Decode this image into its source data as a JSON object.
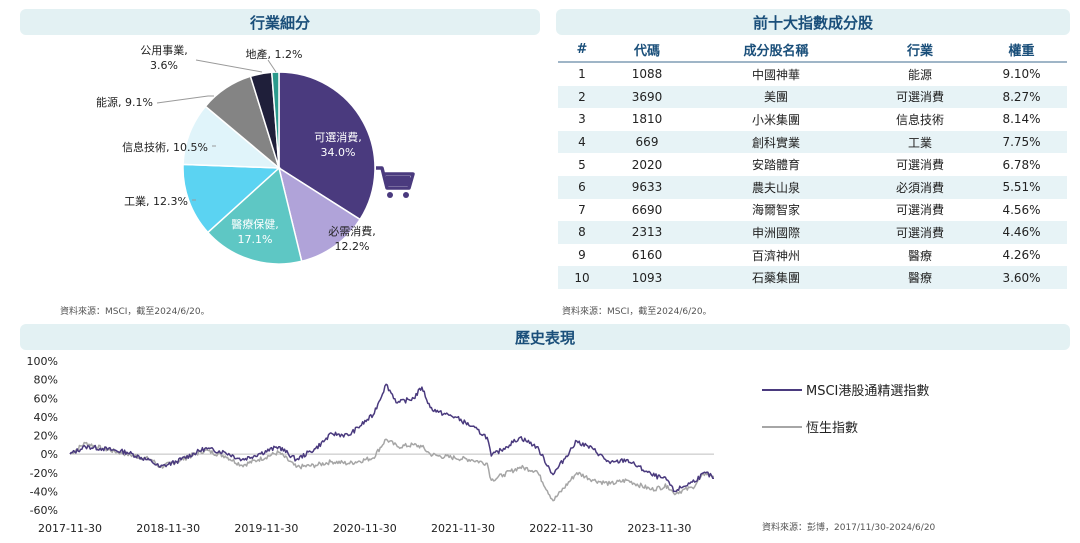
{
  "sector_panel": {
    "title": "行業細分",
    "source": "資料來源：MSCI，截至2024/6/20。"
  },
  "constituents_panel": {
    "title": "前十大指數成分股",
    "source": "資料來源：MSCI，截至2024/6/20。",
    "headers": [
      "#",
      "代碼",
      "成分股名稱",
      "行業",
      "權重"
    ],
    "rows": [
      [
        "1",
        "1088",
        "中國神華",
        "能源",
        "9.10%"
      ],
      [
        "2",
        "3690",
        "美團",
        "可選消費",
        "8.27%"
      ],
      [
        "3",
        "1810",
        "小米集團",
        "信息技術",
        "8.14%"
      ],
      [
        "4",
        "669",
        "創科實業",
        "工業",
        "7.75%"
      ],
      [
        "5",
        "2020",
        "安踏體育",
        "可選消費",
        "6.78%"
      ],
      [
        "6",
        "9633",
        "農夫山泉",
        "必須消費",
        "5.51%"
      ],
      [
        "7",
        "6690",
        "海爾智家",
        "可選消費",
        "4.56%"
      ],
      [
        "8",
        "2313",
        "申洲國際",
        "可選消費",
        "4.46%"
      ],
      [
        "9",
        "6160",
        "百濟神州",
        "醫療",
        "4.26%"
      ],
      [
        "10",
        "1093",
        "石藥集團",
        "醫療",
        "3.60%"
      ]
    ]
  },
  "history_panel": {
    "title": "歷史表現",
    "source": "資料來源：彭博，2017/11/30-2024/6/20"
  },
  "icons": {
    "cart": "shopping-cart-icon"
  },
  "chart_data": [
    {
      "type": "pie",
      "title": "",
      "slices": [
        {
          "name": "可選消費",
          "value": 34.0,
          "label": "可選消費,",
          "pct": "34.0%",
          "color": "#4a3a7e"
        },
        {
          "name": "必需消費",
          "value": 12.2,
          "label": "必需消費,",
          "pct": "12.2%",
          "color": "#b0a3d9"
        },
        {
          "name": "醫療保健",
          "value": 17.1,
          "label": "醫療保健,",
          "pct": "17.1%",
          "color": "#5ec7c4"
        },
        {
          "name": "工業",
          "value": 12.3,
          "label": "工業, 12.3%",
          "pct": "",
          "color": "#5bd3f2"
        },
        {
          "name": "信息技術",
          "value": 10.5,
          "label": "信息技術, 10.5%",
          "pct": "",
          "color": "#e0f4fa"
        },
        {
          "name": "能源",
          "value": 9.1,
          "label": "能源, 9.1%",
          "pct": "",
          "color": "#848484"
        },
        {
          "name": "公用事業",
          "value": 3.6,
          "label": "公用事業,",
          "pct": "3.6%",
          "color": "#1f1f3a"
        },
        {
          "name": "地產",
          "value": 1.2,
          "label": "地產, 1.2%",
          "pct": "",
          "color": "#2b9a8c"
        }
      ]
    },
    {
      "type": "line",
      "title": "",
      "ylim": [
        -60,
        100
      ],
      "yticks": [
        "100%",
        "80%",
        "60%",
        "40%",
        "20%",
        "0%",
        "-20%",
        "-40%",
        "-60%"
      ],
      "xticks": [
        "2017-11-30",
        "2018-11-30",
        "2019-11-30",
        "2020-11-30",
        "2021-11-30",
        "2022-11-30",
        "2023-11-30"
      ],
      "xrange": [
        "2017-11-30",
        "2024-06-20"
      ],
      "series": [
        {
          "name": "MSCI港股通精選指數",
          "color": "#4a3a7e",
          "points": [
            [
              "2017-11-30",
              0
            ],
            [
              "2018-01-26",
              8
            ],
            [
              "2018-03-31",
              6
            ],
            [
              "2018-06-30",
              2
            ],
            [
              "2018-09-30",
              -8
            ],
            [
              "2018-10-31",
              -14
            ],
            [
              "2018-12-31",
              -8
            ],
            [
              "2019-04-15",
              6
            ],
            [
              "2019-06-30",
              2
            ],
            [
              "2019-08-31",
              -6
            ],
            [
              "2019-10-31",
              0
            ],
            [
              "2020-01-15",
              8
            ],
            [
              "2020-03-20",
              -6
            ],
            [
              "2020-05-31",
              6
            ],
            [
              "2020-07-31",
              22
            ],
            [
              "2020-09-30",
              20
            ],
            [
              "2020-12-31",
              42
            ],
            [
              "2021-02-17",
              75
            ],
            [
              "2021-03-31",
              55
            ],
            [
              "2021-05-31",
              60
            ],
            [
              "2021-06-30",
              72
            ],
            [
              "2021-07-31",
              50
            ],
            [
              "2021-08-31",
              45
            ],
            [
              "2021-10-31",
              40
            ],
            [
              "2021-12-31",
              30
            ],
            [
              "2022-02-28",
              18
            ],
            [
              "2022-03-15",
              -2
            ],
            [
              "2022-04-30",
              6
            ],
            [
              "2022-06-30",
              18
            ],
            [
              "2022-08-31",
              8
            ],
            [
              "2022-10-31",
              -22
            ],
            [
              "2023-01-27",
              14
            ],
            [
              "2023-03-31",
              5
            ],
            [
              "2023-05-31",
              -10
            ],
            [
              "2023-07-31",
              -6
            ],
            [
              "2023-10-31",
              -22
            ],
            [
              "2023-12-31",
              -28
            ],
            [
              "2024-01-22",
              -40
            ],
            [
              "2024-03-31",
              -30
            ],
            [
              "2024-05-20",
              -20
            ],
            [
              "2024-06-20",
              -26
            ]
          ]
        },
        {
          "name": "恆生指數",
          "color": "#a6a6a6",
          "points": [
            [
              "2017-11-30",
              0
            ],
            [
              "2018-01-26",
              12
            ],
            [
              "2018-03-31",
              6
            ],
            [
              "2018-06-30",
              0
            ],
            [
              "2018-09-30",
              -6
            ],
            [
              "2018-10-31",
              -14
            ],
            [
              "2018-12-31",
              -8
            ],
            [
              "2019-04-15",
              4
            ],
            [
              "2019-06-30",
              -2
            ],
            [
              "2019-08-31",
              -12
            ],
            [
              "2019-10-31",
              -6
            ],
            [
              "2020-01-15",
              2
            ],
            [
              "2020-03-20",
              -14
            ],
            [
              "2020-05-31",
              -12
            ],
            [
              "2020-07-31",
              -8
            ],
            [
              "2020-09-30",
              -10
            ],
            [
              "2020-12-31",
              -4
            ],
            [
              "2021-02-17",
              16
            ],
            [
              "2021-03-31",
              8
            ],
            [
              "2021-05-31",
              10
            ],
            [
              "2021-06-30",
              8
            ],
            [
              "2021-07-31",
              0
            ],
            [
              "2021-08-31",
              -2
            ],
            [
              "2021-10-31",
              -4
            ],
            [
              "2021-12-31",
              -6
            ],
            [
              "2022-02-28",
              -10
            ],
            [
              "2022-03-15",
              -28
            ],
            [
              "2022-04-30",
              -22
            ],
            [
              "2022-06-30",
              -14
            ],
            [
              "2022-08-31",
              -18
            ],
            [
              "2022-10-31",
              -50
            ],
            [
              "2023-01-27",
              -20
            ],
            [
              "2023-03-31",
              -28
            ],
            [
              "2023-05-31",
              -32
            ],
            [
              "2023-07-31",
              -28
            ],
            [
              "2023-10-31",
              -38
            ],
            [
              "2023-12-31",
              -34
            ],
            [
              "2024-01-22",
              -42
            ],
            [
              "2024-03-31",
              -36
            ],
            [
              "2024-05-20",
              -20
            ],
            [
              "2024-06-20",
              -24
            ]
          ]
        }
      ]
    }
  ]
}
